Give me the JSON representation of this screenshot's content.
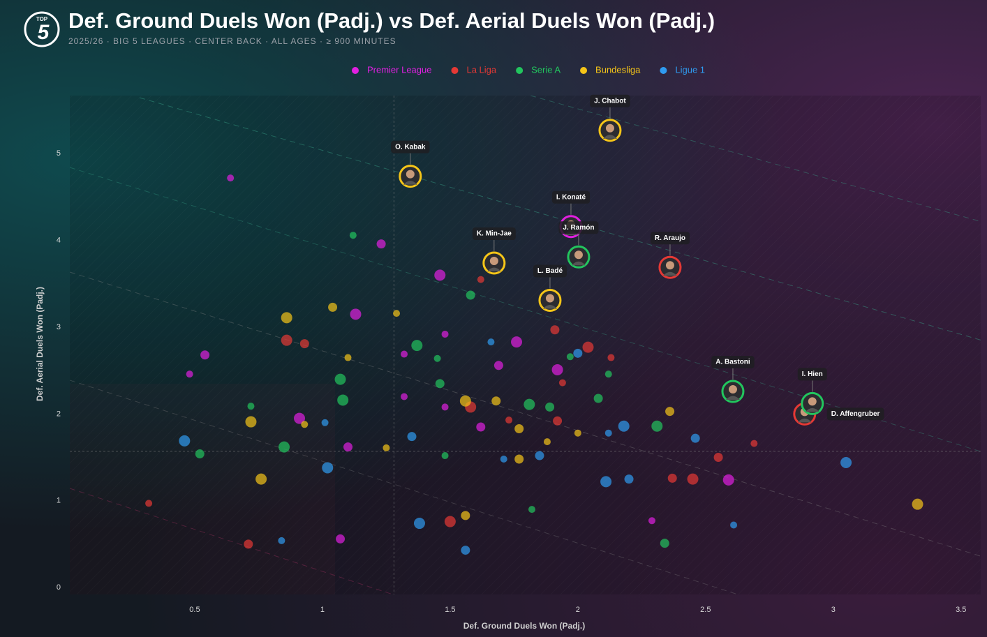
{
  "logo": {
    "top": "TOP",
    "number": "5"
  },
  "chart_data": {
    "type": "scatter",
    "title": "Def. Ground Duels Won (Padj.) vs Def. Aerial Duels Won (Padj.)",
    "subtitle": "2025/26 · BIG 5 LEAGUES · CENTER BACK · ALL AGES · ≥ 900 MINUTES",
    "x_label": "Def. Ground Duels Won (Padj.)",
    "y_label": "Def. Aerial Duels Won (Padj.)",
    "xlim": [
      0,
      3.58
    ],
    "ylim": [
      -0.08,
      5.67
    ],
    "xticks": [
      0.5,
      1,
      1.5,
      2,
      2.5,
      3,
      3.5
    ],
    "yticks": [
      0,
      1,
      2,
      3,
      4,
      5
    ],
    "grid": false,
    "legend": "top",
    "reference_lines": {
      "x": 1.28,
      "y": 1.57
    },
    "series": [
      {
        "name": "Premier League",
        "color": "#e020e0",
        "x": [
          0.64,
          1.23,
          1.13,
          1.48,
          1.69,
          1.76,
          1.32,
          1.62,
          1.92,
          0.48,
          0.54,
          2.59,
          2.29,
          1.1,
          0.91,
          1.48,
          1.07,
          1.46,
          1.32,
          1.973
        ],
        "y": [
          4.72,
          3.96,
          3.15,
          2.92,
          2.56,
          2.83,
          2.69,
          1.85,
          2.51,
          2.46,
          2.68,
          1.24,
          0.77,
          1.62,
          1.95,
          2.08,
          0.56,
          3.6,
          2.2,
          4.16
        ],
        "labels": [
          null,
          null,
          null,
          null,
          null,
          null,
          null,
          null,
          null,
          null,
          null,
          null,
          null,
          null,
          null,
          null,
          null,
          null,
          null,
          "I. Konaté"
        ]
      },
      {
        "name": "La Liga",
        "color": "#e53935",
        "x": [
          1.62,
          1.91,
          2.04,
          2.13,
          0.93,
          0.86,
          1.73,
          1.92,
          1.58,
          2.69,
          2.37,
          2.45,
          0.32,
          0.71,
          1.5,
          1.94,
          2.55,
          2.361,
          2.888
        ],
        "y": [
          3.55,
          2.97,
          2.77,
          2.65,
          2.81,
          2.85,
          1.93,
          1.92,
          2.08,
          1.66,
          1.26,
          1.25,
          0.97,
          0.5,
          0.76,
          2.36,
          1.5,
          3.69,
          2.0
        ],
        "labels": [
          null,
          null,
          null,
          null,
          null,
          null,
          null,
          null,
          null,
          null,
          null,
          null,
          null,
          null,
          null,
          null,
          null,
          "R. Araujo",
          "D. Affengruber"
        ]
      },
      {
        "name": "Serie A",
        "color": "#22c55e",
        "x": [
          1.12,
          1.58,
          1.37,
          1.45,
          1.46,
          1.07,
          1.97,
          1.89,
          1.81,
          2.12,
          2.08,
          2.31,
          1.48,
          0.52,
          0.85,
          1.82,
          2.34,
          1.08,
          0.72,
          2.003,
          2.607,
          2.918
        ],
        "y": [
          4.06,
          3.37,
          2.79,
          2.64,
          2.35,
          2.4,
          2.66,
          2.08,
          2.11,
          2.46,
          2.18,
          1.86,
          1.52,
          1.54,
          1.62,
          0.9,
          0.51,
          2.16,
          2.09,
          3.81,
          2.26,
          2.12
        ],
        "labels": [
          null,
          null,
          null,
          null,
          null,
          null,
          null,
          null,
          null,
          null,
          null,
          null,
          null,
          null,
          null,
          null,
          null,
          null,
          null,
          "J. Ramón",
          "A. Bastoni",
          "I. Hien"
        ]
      },
      {
        "name": "Bundesliga",
        "color": "#f5c518",
        "x": [
          1.29,
          1.04,
          0.86,
          1.1,
          1.68,
          1.56,
          2.0,
          2.36,
          3.33,
          1.88,
          1.77,
          0.72,
          0.93,
          1.56,
          0.76,
          1.25,
          1.77,
          2.126,
          1.344,
          1.672,
          1.891
        ],
        "y": [
          3.16,
          3.23,
          3.11,
          2.65,
          2.15,
          2.15,
          1.78,
          2.03,
          0.96,
          1.68,
          1.48,
          1.91,
          1.88,
          0.83,
          1.25,
          1.61,
          1.83,
          5.27,
          4.74,
          3.74,
          3.31
        ],
        "labels": [
          null,
          null,
          null,
          null,
          null,
          null,
          null,
          null,
          null,
          null,
          null,
          null,
          null,
          null,
          null,
          null,
          null,
          "J. Chabot",
          "O. Kabak",
          "K. Min-Jae",
          "L. Badé"
        ]
      },
      {
        "name": "Ligue 1",
        "color": "#2f9bf0",
        "x": [
          1.66,
          2.0,
          2.18,
          2.12,
          2.46,
          3.05,
          2.61,
          2.2,
          2.11,
          1.71,
          1.85,
          0.46,
          1.01,
          1.35,
          1.02,
          0.84,
          1.56,
          1.38
        ],
        "y": [
          2.83,
          2.7,
          1.86,
          1.78,
          1.72,
          1.44,
          0.72,
          1.25,
          1.22,
          1.48,
          1.52,
          1.69,
          1.9,
          1.74,
          1.38,
          0.54,
          0.43,
          0.74
        ],
        "labels": [
          null,
          null,
          null,
          null,
          null,
          null,
          null,
          null,
          null,
          null,
          null,
          null,
          null,
          null,
          null,
          null,
          null,
          null
        ]
      }
    ]
  }
}
